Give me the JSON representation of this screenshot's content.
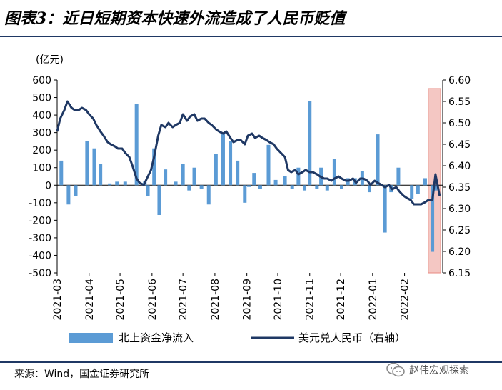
{
  "title": "图表3：近日短期资本快速外流造成了人民币贬值",
  "source": "来源：Wind，国金证券研究所",
  "watermark": "赵伟宏观探索",
  "colors": {
    "bars": "#5b9bd5",
    "line": "#1f3864",
    "highlight": "#f4c7c3",
    "highlight_border": "#e88a80",
    "rule": "#1f3864"
  },
  "chart_data": {
    "type": "bar+line",
    "left_axis_unit": "(亿元)",
    "ylim_left": [
      -500,
      600
    ],
    "ylim_right": [
      6.15,
      6.6
    ],
    "left_ticks": [
      "600",
      "500",
      "400",
      "300",
      "200",
      "100",
      "0",
      "-100",
      "-200",
      "-300",
      "-400",
      "-500"
    ],
    "right_ticks": [
      "6.60",
      "6.55",
      "6.50",
      "6.45",
      "6.40",
      "6.35",
      "6.30",
      "6.25",
      "6.20",
      "6.15"
    ],
    "x_tick_labels": [
      "2021-03",
      "2021-04",
      "2021-05",
      "2021-06",
      "2021-07",
      "2021-08",
      "2021-09",
      "2021-10",
      "2021-11",
      "2021-12",
      "2022-01",
      "2022-02"
    ],
    "highlight_range": [
      "2022-02-24",
      "2022-03-08"
    ],
    "series": [
      {
        "name": "北上资金净流入",
        "type": "bar",
        "axis": "left",
        "x": [
          "2021-03-05",
          "2021-03-12",
          "2021-03-19",
          "2021-03-30",
          "2021-04-06",
          "2021-04-12",
          "2021-04-21",
          "2021-04-28",
          "2021-05-06",
          "2021-05-17",
          "2021-05-25",
          "2021-05-28",
          "2021-06-03",
          "2021-06-08",
          "2021-06-14",
          "2021-06-24",
          "2021-07-01",
          "2021-07-07",
          "2021-07-12",
          "2021-07-19",
          "2021-07-26",
          "2021-08-02",
          "2021-08-09",
          "2021-08-16",
          "2021-08-23",
          "2021-08-30",
          "2021-09-03",
          "2021-09-08",
          "2021-09-14",
          "2021-09-22",
          "2021-09-29",
          "2021-10-08",
          "2021-10-15",
          "2021-10-21",
          "2021-10-27",
          "2021-11-01",
          "2021-11-08",
          "2021-11-12",
          "2021-11-18",
          "2021-11-25",
          "2021-12-02",
          "2021-12-08",
          "2021-12-15",
          "2021-12-22",
          "2021-12-29",
          "2022-01-06",
          "2022-01-13",
          "2022-01-19",
          "2022-01-26",
          "2022-02-08",
          "2022-02-14",
          "2022-02-21",
          "2022-02-28",
          "2022-03-03"
        ],
        "values": [
          140,
          -110,
          -60,
          250,
          210,
          120,
          10,
          20,
          20,
          465,
          20,
          -60,
          210,
          -170,
          90,
          20,
          120,
          -30,
          100,
          -20,
          -110,
          180,
          300,
          250,
          140,
          -100,
          -10,
          70,
          -20,
          230,
          30,
          50,
          -20,
          100,
          -30,
          480,
          -20,
          100,
          -30,
          150,
          -20,
          40,
          40,
          80,
          -40,
          290,
          -270,
          -40,
          100,
          -80,
          -50,
          40,
          -380,
          -30
        ]
      },
      {
        "name": "美元兑人民币（右轴）",
        "type": "line",
        "axis": "right",
        "x": [
          "2021-03-01",
          "2021-03-04",
          "2021-03-08",
          "2021-03-11",
          "2021-03-15",
          "2021-03-18",
          "2021-03-22",
          "2021-03-25",
          "2021-03-29",
          "2021-04-01",
          "2021-04-05",
          "2021-04-08",
          "2021-04-12",
          "2021-04-15",
          "2021-04-19",
          "2021-04-22",
          "2021-04-26",
          "2021-04-29",
          "2021-05-03",
          "2021-05-06",
          "2021-05-10",
          "2021-05-13",
          "2021-05-17",
          "2021-05-20",
          "2021-05-24",
          "2021-05-27",
          "2021-05-31",
          "2021-06-03",
          "2021-06-07",
          "2021-06-10",
          "2021-06-14",
          "2021-06-17",
          "2021-06-21",
          "2021-06-24",
          "2021-06-28",
          "2021-07-01",
          "2021-07-05",
          "2021-07-08",
          "2021-07-12",
          "2021-07-15",
          "2021-07-19",
          "2021-07-22",
          "2021-07-26",
          "2021-07-29",
          "2021-08-02",
          "2021-08-05",
          "2021-08-09",
          "2021-08-12",
          "2021-08-16",
          "2021-08-19",
          "2021-08-23",
          "2021-08-26",
          "2021-08-30",
          "2021-09-02",
          "2021-09-06",
          "2021-09-09",
          "2021-09-13",
          "2021-09-16",
          "2021-09-20",
          "2021-09-23",
          "2021-09-27",
          "2021-09-30",
          "2021-10-04",
          "2021-10-08",
          "2021-10-11",
          "2021-10-14",
          "2021-10-18",
          "2021-10-21",
          "2021-10-25",
          "2021-10-28",
          "2021-11-01",
          "2021-11-04",
          "2021-11-08",
          "2021-11-11",
          "2021-11-15",
          "2021-11-18",
          "2021-11-22",
          "2021-11-25",
          "2021-11-29",
          "2021-12-02",
          "2021-12-06",
          "2021-12-09",
          "2021-12-13",
          "2021-12-16",
          "2021-12-20",
          "2021-12-23",
          "2021-12-27",
          "2021-12-30",
          "2022-01-03",
          "2022-01-06",
          "2022-01-10",
          "2022-01-13",
          "2022-01-17",
          "2022-01-20",
          "2022-01-24",
          "2022-01-27",
          "2022-01-31",
          "2022-02-03",
          "2022-02-07",
          "2022-02-10",
          "2022-02-14",
          "2022-02-17",
          "2022-02-21",
          "2022-02-24",
          "2022-02-28",
          "2022-03-03",
          "2022-03-07"
        ],
        "values": [
          6.48,
          6.51,
          6.53,
          6.55,
          6.535,
          6.53,
          6.53,
          6.535,
          6.53,
          6.52,
          6.51,
          6.495,
          6.48,
          6.47,
          6.455,
          6.45,
          6.445,
          6.44,
          6.44,
          6.43,
          6.42,
          6.4,
          6.37,
          6.36,
          6.355,
          6.37,
          6.39,
          6.42,
          6.47,
          6.495,
          6.49,
          6.5,
          6.49,
          6.495,
          6.5,
          6.52,
          6.505,
          6.515,
          6.52,
          6.505,
          6.51,
          6.51,
          6.5,
          6.495,
          6.485,
          6.48,
          6.475,
          6.48,
          6.465,
          6.455,
          6.46,
          6.46,
          6.45,
          6.47,
          6.475,
          6.465,
          6.47,
          6.465,
          6.46,
          6.455,
          6.45,
          6.44,
          6.43,
          6.42,
          6.39,
          6.385,
          6.39,
          6.38,
          6.385,
          6.39,
          6.385,
          6.385,
          6.38,
          6.375,
          6.37,
          6.37,
          6.365,
          6.37,
          6.375,
          6.37,
          6.365,
          6.365,
          6.37,
          6.36,
          6.37,
          6.37,
          6.365,
          6.355,
          6.365,
          6.36,
          6.355,
          6.35,
          6.355,
          6.345,
          6.35,
          6.34,
          6.33,
          6.325,
          6.32,
          6.31,
          6.31,
          6.31,
          6.315,
          6.32,
          6.32,
          6.38,
          6.33
        ]
      }
    ],
    "legend": {
      "position": "bottom",
      "entries": [
        "北上资金净流入",
        "美元兑人民币（右轴）"
      ]
    }
  }
}
